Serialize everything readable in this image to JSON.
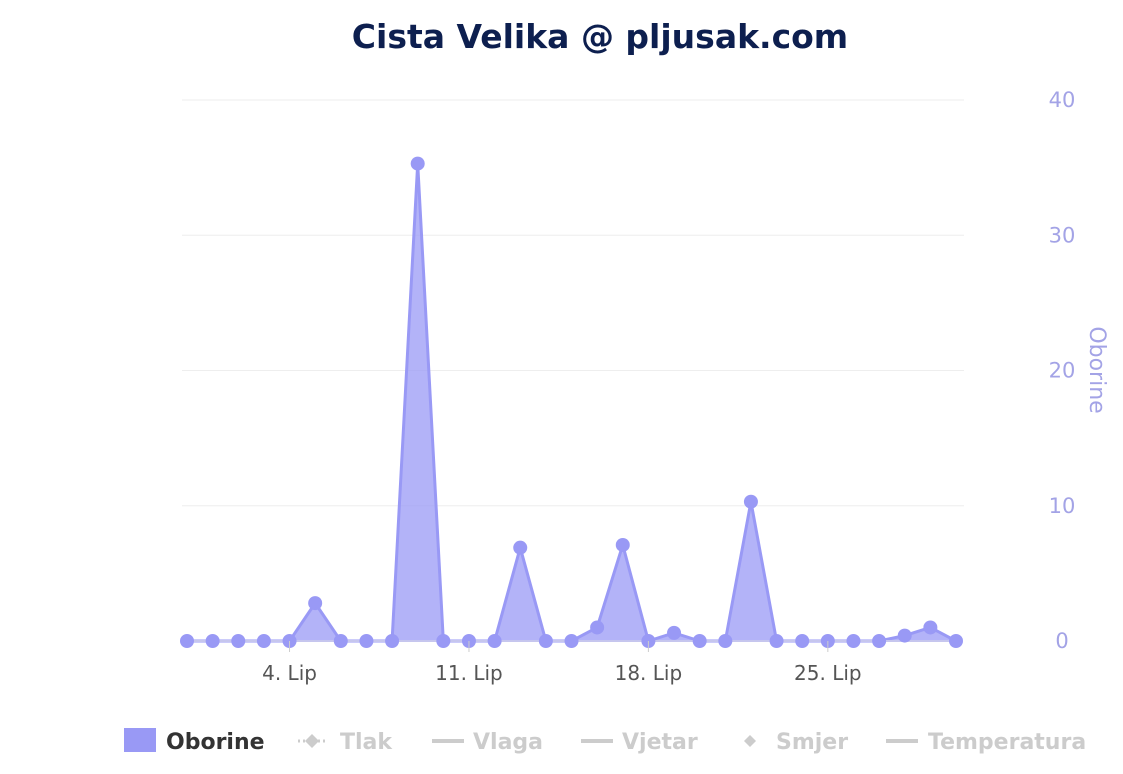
{
  "chart_data": {
    "type": "area",
    "title": "Cista Velika @ pljusak.com",
    "ylabel": "Oborine",
    "ylim": [
      0,
      40
    ],
    "yticks": [
      "0",
      "10",
      "20",
      "30",
      "40"
    ],
    "xtick_labels": [
      "4. Lip",
      "11. Lip",
      "18. Lip",
      "25. Lip"
    ],
    "xtick_index": [
      4,
      11,
      18,
      25
    ],
    "x_start_day": 0,
    "x_end_day": 30,
    "grid": true,
    "legend_position": "bottom",
    "series": [
      {
        "name": "Oborine",
        "color": "#9999f5",
        "visible": true,
        "values": [
          0,
          0,
          0,
          0,
          0,
          2.8,
          0,
          0,
          0,
          35.3,
          0,
          0,
          0,
          6.9,
          0,
          0,
          1.0,
          7.1,
          0,
          0.6,
          0,
          0,
          10.3,
          0,
          0,
          0,
          0,
          0,
          0.4,
          1.0,
          0
        ]
      }
    ],
    "legend": [
      {
        "name": "Oborine",
        "symbol": "rect",
        "active": true
      },
      {
        "name": "Tlak",
        "symbol": "dotted-diamond",
        "active": false
      },
      {
        "name": "Vlaga",
        "symbol": "line",
        "active": false
      },
      {
        "name": "Vjetar",
        "symbol": "line",
        "active": false
      },
      {
        "name": "Smjer",
        "symbol": "diamond",
        "active": false
      },
      {
        "name": "Temperatura",
        "symbol": "line",
        "active": false
      }
    ],
    "colors": {
      "title": "#0d1f4f",
      "axis": "#a3a3e6",
      "inactive": "#cccccc",
      "active_text": "#333333"
    }
  }
}
